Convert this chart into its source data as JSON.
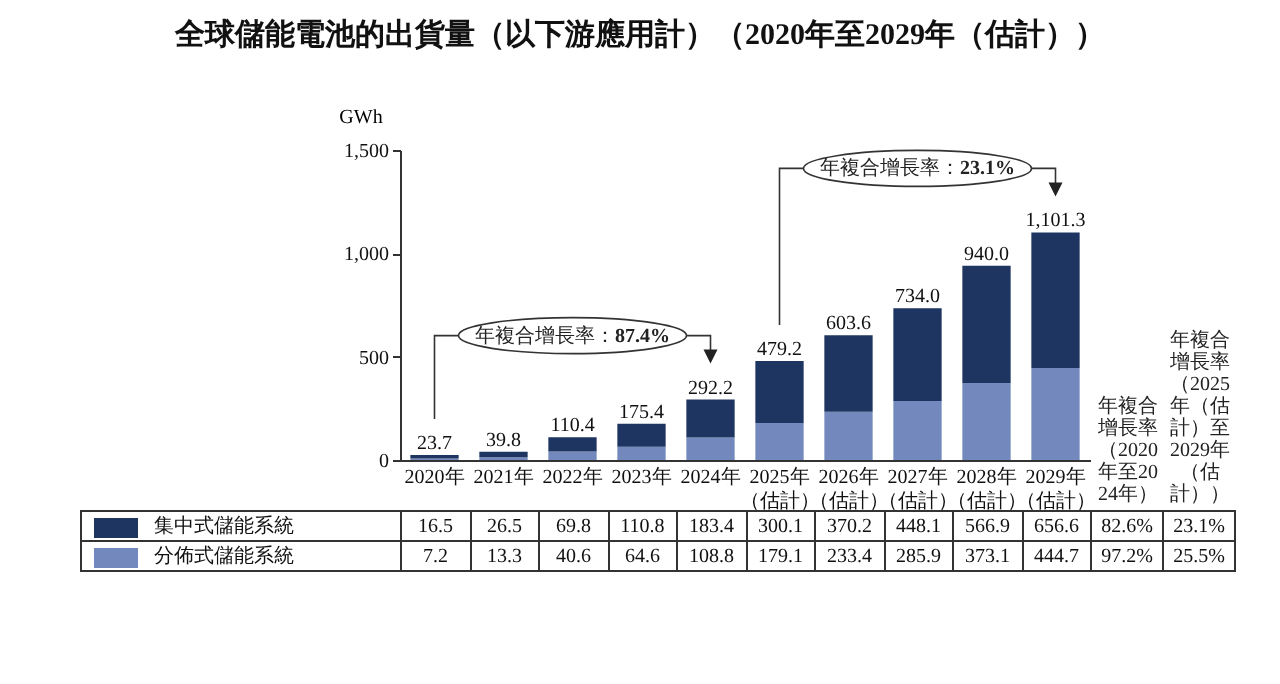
{
  "chart_data": {
    "type": "bar",
    "title": "全球儲能電池的出貨量（以下游應用計）（2020年至2029年（估計））",
    "ylabel": "GWh",
    "categories": [
      "2020年",
      "2021年",
      "2022年",
      "2023年",
      "2024年",
      "2025年（估計）",
      "2026年（估計）",
      "2027年（估計）",
      "2028年（估計）",
      "2029年（估計）"
    ],
    "series": [
      {
        "name": "分佈式儲能系統",
        "color": "#7389bd",
        "values": [
          7.2,
          13.3,
          40.6,
          64.6,
          108.8,
          179.1,
          233.4,
          285.9,
          373.1,
          444.7
        ]
      },
      {
        "name": "集中式儲能系統",
        "color": "#1e3461",
        "values": [
          16.5,
          26.5,
          69.8,
          110.8,
          183.4,
          300.1,
          370.2,
          448.1,
          566.9,
          656.6
        ]
      }
    ],
    "stacked": true,
    "data_labels": true,
    "totals": [
      "23.7",
      "39.8",
      "110.4",
      "175.4",
      "292.2",
      "479.2",
      "603.6",
      "734.0",
      "940.0",
      "1,101.3"
    ],
    "ylim": [
      0,
      1500
    ],
    "yticks": [
      0,
      500,
      {
        "value": 1000,
        "label": "1,000"
      },
      {
        "value": 1500,
        "label": "1,500"
      }
    ],
    "grid": false,
    "legend": "bottom",
    "annotations": [
      "年複合增長率：87.4%",
      "年複合增長率：23.1%",
      "年複合增長率（2020年至2024年）",
      "年複合增長率（2025年（估計）至2029年（估計））",
      "82.6%",
      "23.1%",
      "97.2%",
      "25.5%"
    ]
  }
}
